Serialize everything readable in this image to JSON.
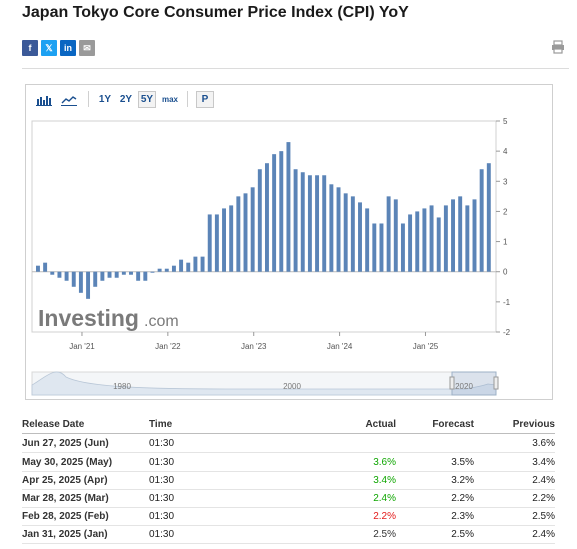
{
  "title": "Japan Tokyo Core Consumer Price Index (CPI) YoY",
  "share": [
    {
      "label": "f",
      "icon": "facebook-icon",
      "color": "#3b5998"
    },
    {
      "label": "𝕏",
      "icon": "x-twitter-icon",
      "color": "#1da1f2"
    },
    {
      "label": "in",
      "icon": "linkedin-icon",
      "color": "#0a66c2"
    },
    {
      "label": "✉",
      "icon": "email-icon",
      "color": "#9a9a9a"
    }
  ],
  "toolbar": {
    "ranges": [
      "1Y",
      "2Y",
      "5Y",
      "max"
    ],
    "selected": "5Y",
    "popout": "P"
  },
  "chart_data": {
    "type": "bar",
    "x_labels": [
      "Jan '21",
      "Jan '22",
      "Jan '23",
      "Jan '24",
      "Jan '25"
    ],
    "y_ticks": [
      5,
      4,
      3,
      2,
      1,
      0,
      -1,
      -2
    ],
    "ylim": [
      -2,
      5
    ],
    "values": [
      0.2,
      0.3,
      -0.1,
      -0.2,
      -0.3,
      -0.5,
      -0.7,
      -0.9,
      -0.5,
      -0.3,
      -0.2,
      -0.2,
      -0.1,
      -0.1,
      -0.3,
      -0.3,
      0.0,
      0.1,
      0.1,
      0.2,
      0.4,
      0.3,
      0.5,
      0.5,
      1.9,
      1.9,
      2.1,
      2.2,
      2.5,
      2.6,
      2.8,
      3.4,
      3.6,
      3.9,
      4.0,
      4.3,
      3.4,
      3.3,
      3.2,
      3.2,
      3.2,
      2.9,
      2.8,
      2.6,
      2.5,
      2.3,
      2.1,
      1.6,
      1.6,
      2.5,
      2.4,
      1.6,
      1.9,
      2.0,
      2.1,
      2.2,
      1.8,
      2.2,
      2.4,
      2.5,
      2.2,
      2.4,
      3.4,
      3.6
    ],
    "bar_color": "#5b84b7"
  },
  "watermark": {
    "brand": "Investing",
    "suffix": ".com"
  },
  "navigator": {
    "labels": [
      "1980",
      "2000",
      "2020"
    ]
  },
  "table": {
    "headers": {
      "date": "Release Date",
      "time": "Time",
      "actual": "Actual",
      "forecast": "Forecast",
      "previous": "Previous"
    },
    "rows": [
      {
        "date": "Jun 27, 2025 (Jun)",
        "time": "01:30",
        "actual": "",
        "forecast": "",
        "previous": "3.6%",
        "actual_color": "#333333"
      },
      {
        "date": "May 30, 2025 (May)",
        "time": "01:30",
        "actual": "3.6%",
        "forecast": "3.5%",
        "previous": "3.4%",
        "actual_color": "#0ea600"
      },
      {
        "date": "Apr 25, 2025 (Apr)",
        "time": "01:30",
        "actual": "3.4%",
        "forecast": "3.2%",
        "previous": "2.4%",
        "actual_color": "#0ea600"
      },
      {
        "date": "Mar 28, 2025 (Mar)",
        "time": "01:30",
        "actual": "2.4%",
        "forecast": "2.2%",
        "previous": "2.2%",
        "actual_color": "#0ea600"
      },
      {
        "date": "Feb 28, 2025 (Feb)",
        "time": "01:30",
        "actual": "2.2%",
        "forecast": "2.3%",
        "previous": "2.5%",
        "actual_color": "#e31a1a"
      },
      {
        "date": "Jan 31, 2025 (Jan)",
        "time": "01:30",
        "actual": "2.5%",
        "forecast": "2.5%",
        "previous": "2.4%",
        "actual_color": "#333333"
      }
    ]
  }
}
